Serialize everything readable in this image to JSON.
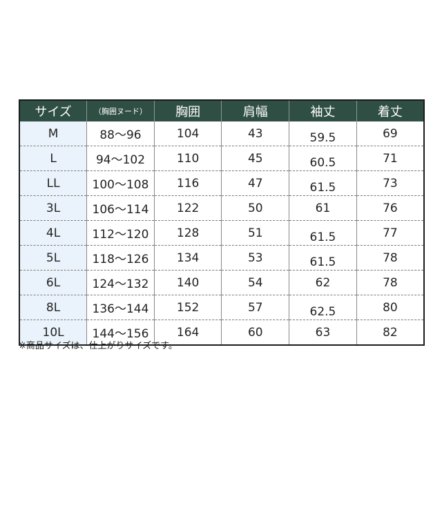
{
  "headers": [
    "サイズ",
    "（胸囲ヌード）",
    "胸囲",
    "肩幅",
    "袖丈",
    "着丈"
  ],
  "rows": [
    [
      "M",
      "88～96",
      "104",
      "43",
      "59.5",
      "69"
    ],
    [
      "L",
      "94～102",
      "110",
      "45",
      "60.5",
      "71"
    ],
    [
      "LL",
      "100～108",
      "116",
      "47",
      "61.5",
      "73"
    ],
    [
      "3L",
      "106～114",
      "122",
      "50",
      "61",
      "76"
    ],
    [
      "4L",
      "112～120",
      "128",
      "51",
      "61.5",
      "77"
    ],
    [
      "5L",
      "118～126",
      "134",
      "53",
      "61.5",
      "78"
    ],
    [
      "6L",
      "124～132",
      "140",
      "54",
      "62",
      "78"
    ],
    [
      "8L",
      "136～144",
      "152",
      "57",
      "62.5",
      "80"
    ],
    [
      "10L",
      "144～156",
      "164",
      "60",
      "63",
      "82"
    ]
  ],
  "note": "※商品サイズは、仕上がりサイズです。",
  "colors": {
    "header_bg": "#2f4e44",
    "size_col_bg": "#eaf3fb"
  }
}
